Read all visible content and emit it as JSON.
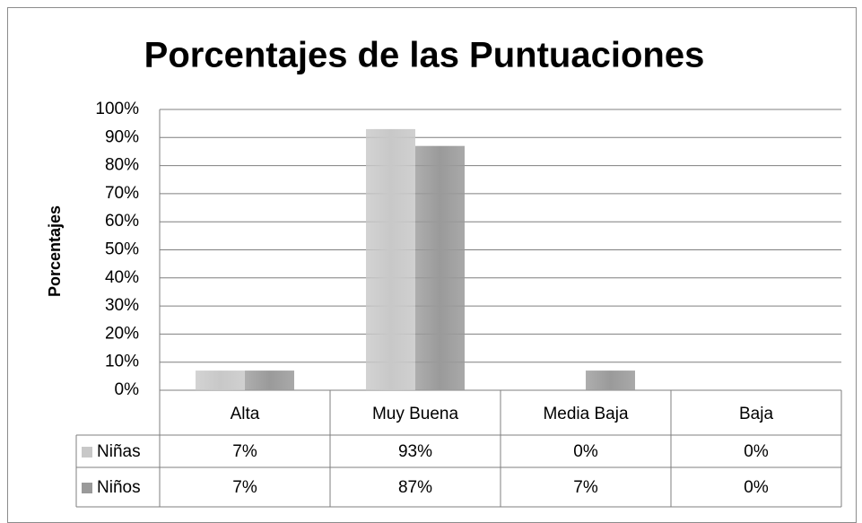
{
  "chart_data": {
    "type": "bar",
    "title": "Porcentajes de las Puntuaciones",
    "y_label": "Porcentajes",
    "categories": [
      "Alta",
      "Muy Buena",
      "Media Baja",
      "Baja"
    ],
    "series": [
      {
        "name": "Niñas",
        "color": "#c8c8c8",
        "values": [
          7,
          93,
          0,
          0
        ],
        "value_labels": [
          "7%",
          "93%",
          "0%",
          "0%"
        ]
      },
      {
        "name": "Niños",
        "color": "#9a9a9a",
        "values": [
          7,
          87,
          7,
          0
        ],
        "value_labels": [
          "7%",
          "87%",
          "7%",
          "0%"
        ]
      }
    ],
    "ylim": [
      0,
      100
    ],
    "yticks": [
      {
        "value": 0,
        "label": "0%"
      },
      {
        "value": 10,
        "label": "10%"
      },
      {
        "value": 20,
        "label": "20%"
      },
      {
        "value": 30,
        "label": "30%"
      },
      {
        "value": 40,
        "label": "40%"
      },
      {
        "value": 50,
        "label": "50%"
      },
      {
        "value": 60,
        "label": "60%"
      },
      {
        "value": 70,
        "label": "70%"
      },
      {
        "value": 80,
        "label": "80%"
      },
      {
        "value": 90,
        "label": "90%"
      },
      {
        "value": 100,
        "label": "100%"
      }
    ],
    "grid": true
  }
}
